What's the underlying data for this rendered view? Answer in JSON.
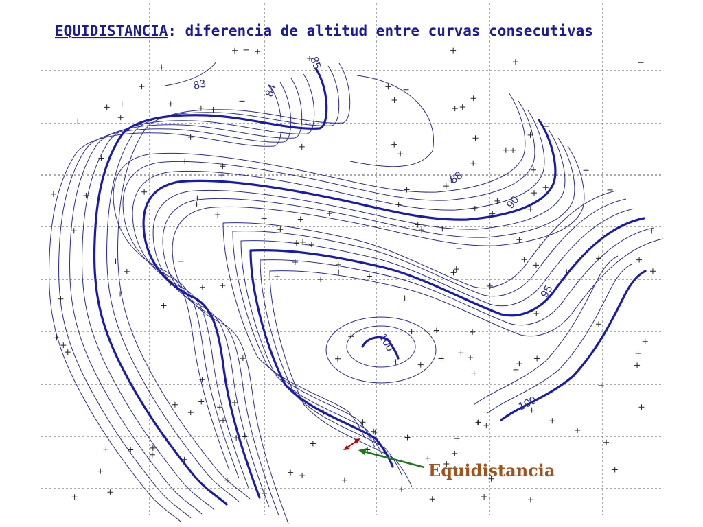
{
  "title": {
    "term": "EQUIDISTANCIA",
    "definition": ": diferencia de altitud entre curvas consecutivas"
  },
  "contour_labels": [
    "83",
    "84",
    "85",
    "88",
    "90",
    "95",
    "100",
    "100"
  ],
  "annotation": "Equidistancia"
}
